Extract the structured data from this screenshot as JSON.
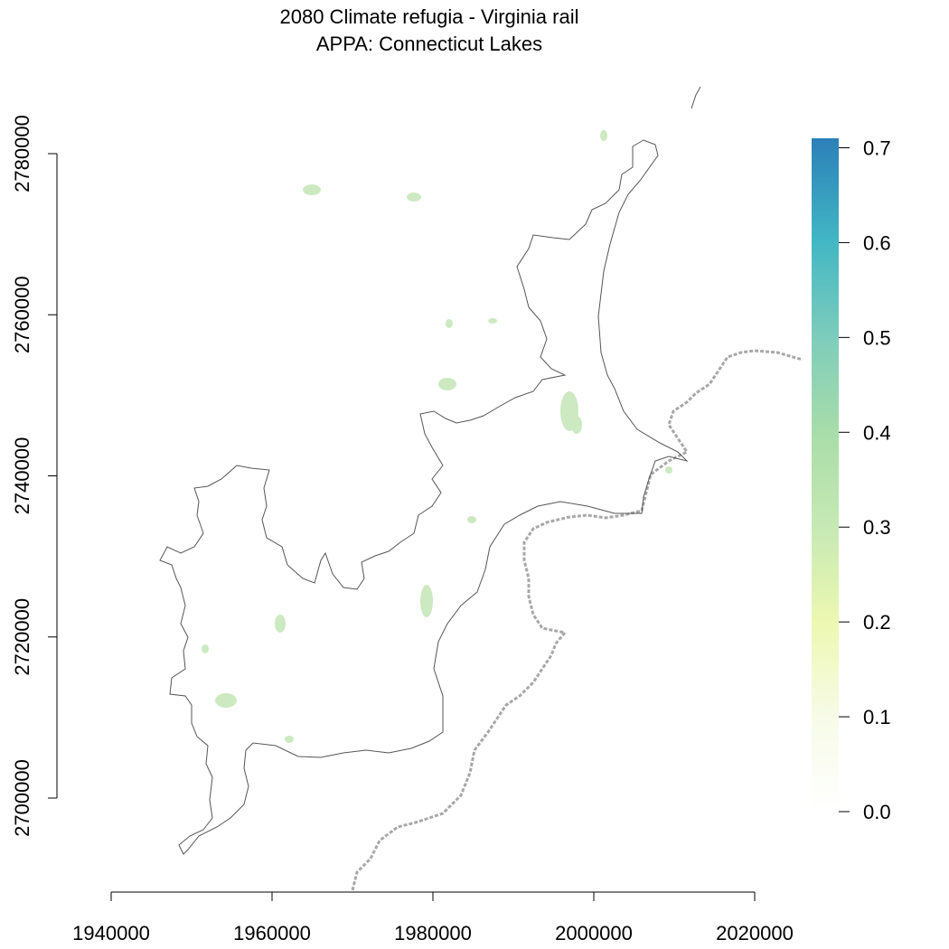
{
  "title": {
    "line1": "2080 Climate refugia - Virginia rail",
    "line2": "APPA: Connecticut Lakes"
  },
  "x_axis": {
    "ticks": [
      "1940000",
      "1960000",
      "1980000",
      "2000000",
      "2020000"
    ],
    "values": [
      1940000,
      1960000,
      1980000,
      2000000,
      2020000
    ],
    "range": [
      1940000,
      2020000
    ]
  },
  "y_axis": {
    "ticks": [
      "2700000",
      "2720000",
      "2740000",
      "2760000",
      "2780000"
    ],
    "values": [
      2700000,
      2720000,
      2740000,
      2760000,
      2780000
    ],
    "range": [
      2700000,
      2780000
    ]
  },
  "legend": {
    "ticks": [
      "0.0",
      "0.1",
      "0.2",
      "0.3",
      "0.4",
      "0.5",
      "0.6",
      "0.7"
    ],
    "values": [
      0,
      0.1,
      0.2,
      0.3,
      0.4,
      0.5,
      0.6,
      0.7
    ],
    "range": [
      0,
      0.71
    ],
    "colors": [
      "#ffffff",
      "#f7fbe8",
      "#edf8b1",
      "#c7e9b4",
      "#a9dda9",
      "#7fcdbb",
      "#41b6c4",
      "#2c7fb8"
    ]
  }
}
